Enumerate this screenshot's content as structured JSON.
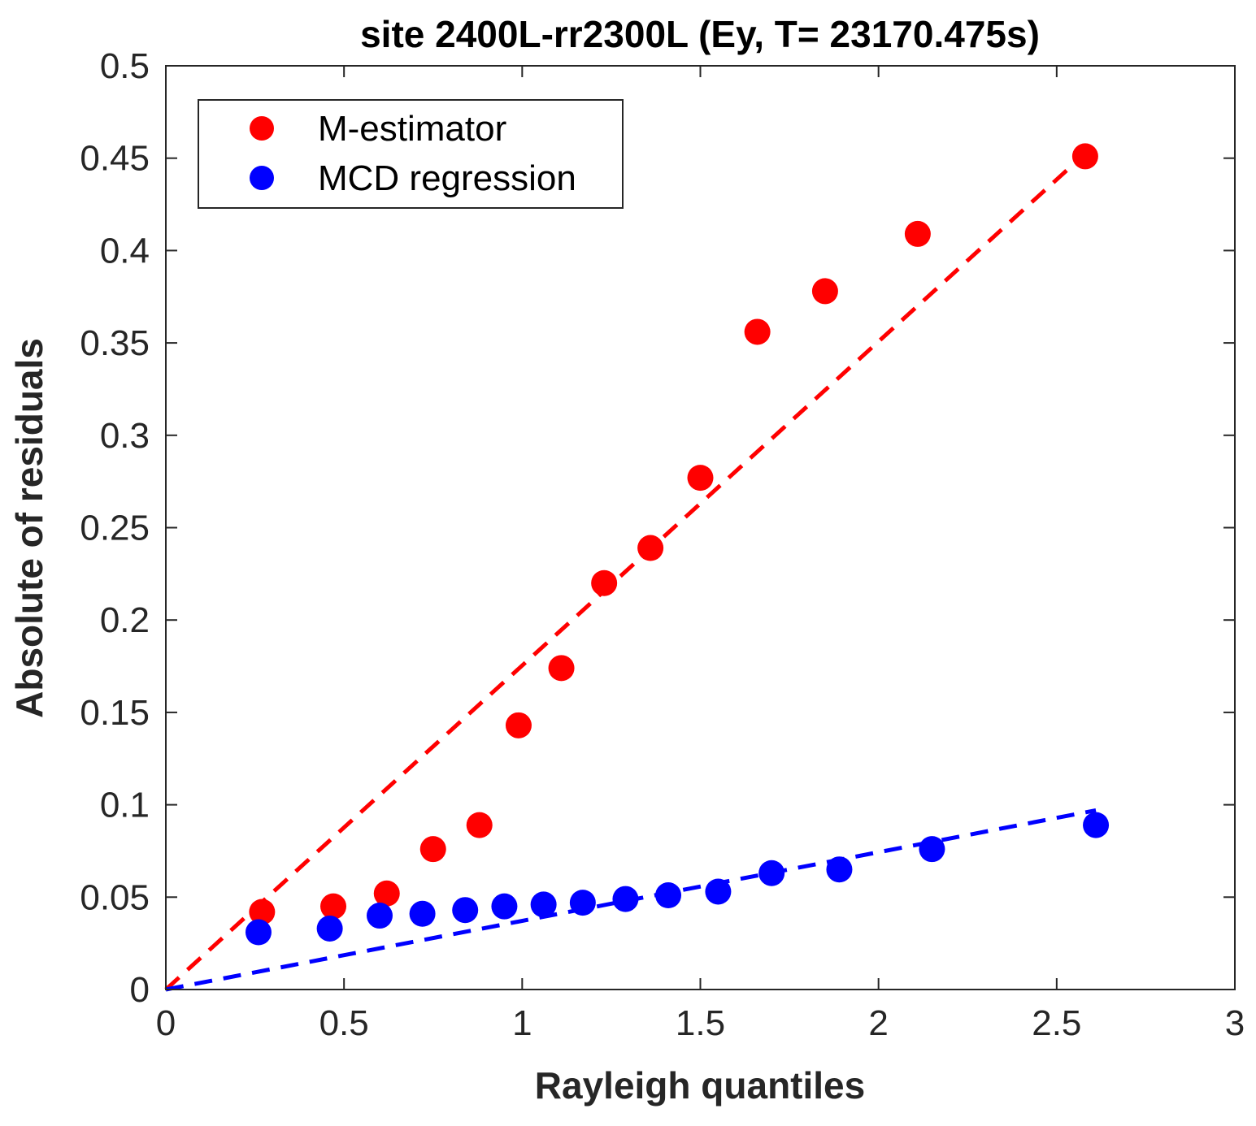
{
  "chart_data": {
    "type": "scatter",
    "title": "site 2400L-rr2300L (Ey, T= 23170.475s)",
    "xlabel": "Rayleigh quantiles",
    "ylabel": "Absolute of residuals",
    "xlim": [
      0,
      3
    ],
    "ylim": [
      0,
      0.5
    ],
    "xticks": [
      "0",
      "0.5",
      "1",
      "1.5",
      "2",
      "2.5",
      "3"
    ],
    "yticks": [
      "0",
      "0.05",
      "0.1",
      "0.15",
      "0.2",
      "0.25",
      "0.3",
      "0.35",
      "0.4",
      "0.45",
      "0.5"
    ],
    "grid": false,
    "legend_position": "top-left",
    "series": [
      {
        "name": "M-estimator",
        "color": "#ff0000",
        "marker": "filled-circle",
        "x": [
          0.27,
          0.47,
          0.62,
          0.75,
          0.88,
          0.99,
          1.11,
          1.23,
          1.36,
          1.5,
          1.66,
          1.85,
          2.11,
          2.58
        ],
        "y": [
          0.042,
          0.045,
          0.052,
          0.076,
          0.089,
          0.143,
          0.174,
          0.22,
          0.239,
          0.277,
          0.356,
          0.378,
          0.409,
          0.451
        ],
        "fit_line": {
          "x": [
            0,
            2.6
          ],
          "y": [
            0,
            0.456
          ],
          "style": "dashed"
        }
      },
      {
        "name": "MCD regression",
        "color": "#0000ff",
        "marker": "filled-circle",
        "x": [
          0.26,
          0.46,
          0.6,
          0.72,
          0.84,
          0.95,
          1.06,
          1.17,
          1.29,
          1.41,
          1.55,
          1.7,
          1.89,
          2.15,
          2.61
        ],
        "y": [
          0.031,
          0.033,
          0.04,
          0.041,
          0.043,
          0.045,
          0.046,
          0.047,
          0.049,
          0.051,
          0.053,
          0.063,
          0.065,
          0.076,
          0.089
        ],
        "fit_line": {
          "x": [
            0,
            2.61
          ],
          "y": [
            0,
            0.097
          ],
          "style": "dashed"
        }
      }
    ]
  }
}
